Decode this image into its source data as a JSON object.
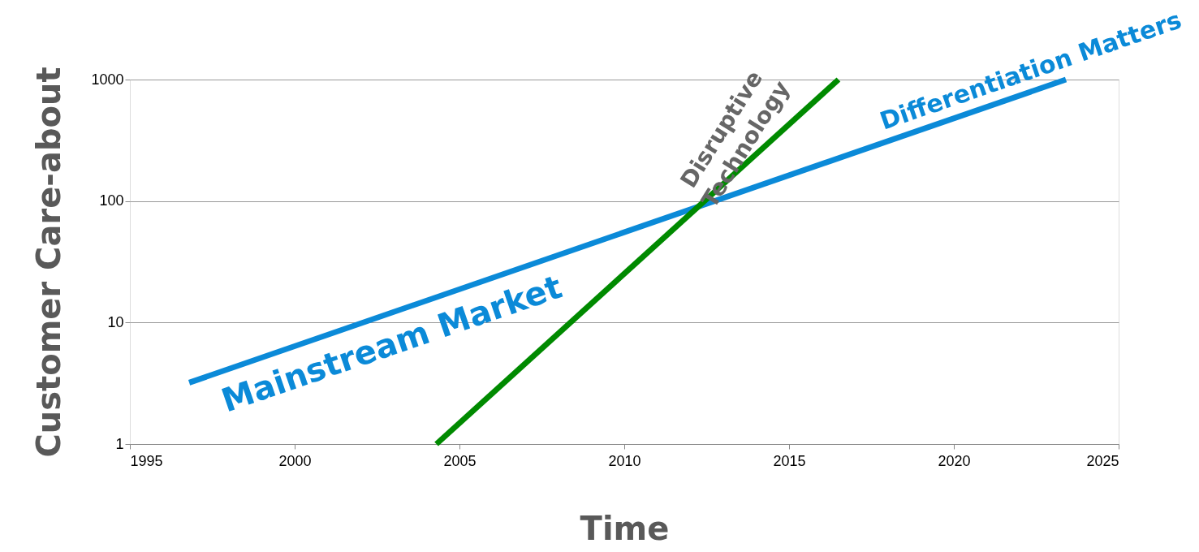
{
  "chart_data": {
    "type": "line",
    "xlabel": "Time",
    "ylabel": "Customer Care-about",
    "log": "y",
    "xlim": [
      1995,
      2025
    ],
    "xticks": [
      1995,
      2000,
      2005,
      2010,
      2015,
      2020,
      2025
    ],
    "ylim": [
      1,
      1000
    ],
    "yticks": [
      1,
      10,
      100,
      1000
    ],
    "grid": "y",
    "legend": false,
    "marker": "none",
    "line_style": "solid",
    "series": [
      {
        "color": "#0b8ad8",
        "x": [
          1996.8,
          2023.4
        ],
        "values": [
          3.2,
          1000
        ]
      },
      {
        "color": "#008a00",
        "x": [
          2004.3,
          2016.5
        ],
        "values": [
          1,
          1000
        ]
      }
    ],
    "annotations": [
      "Mainstream Market",
      "Disruptive Technology",
      "Differentiation Matters"
    ]
  }
}
